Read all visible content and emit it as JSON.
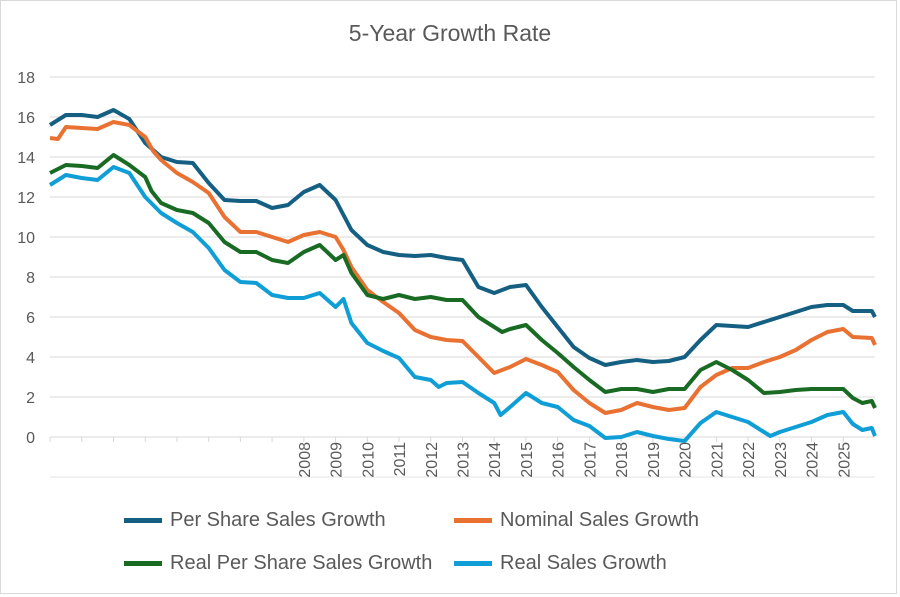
{
  "chart_data": {
    "type": "line",
    "title": "5-Year Growth Rate",
    "xlabel": "",
    "ylabel": "",
    "xlim": [
      2000,
      2026
    ],
    "ylim": [
      0,
      18
    ],
    "y_ticks": [
      0,
      2,
      4,
      6,
      8,
      10,
      12,
      14,
      16,
      18
    ],
    "x_ticks": [
      2000,
      2001,
      2002,
      2003,
      2004,
      2005,
      2006,
      2007,
      2008,
      2009,
      2010,
      2011,
      2012,
      2013,
      2014,
      2015,
      2016,
      2017,
      2018,
      2019,
      2020,
      2021,
      2022,
      2023,
      2024,
      2025
    ],
    "x_tick_labels": [
      "",
      "",
      "",
      "",
      "",
      "",
      "",
      "",
      "2008",
      "2009",
      "2010",
      "2011",
      "2012",
      "2013",
      "2014",
      "2015",
      "2016",
      "2017",
      "2018",
      "2019",
      "2020",
      "2021",
      "2022",
      "2023",
      "2024",
      "2025"
    ],
    "grid": true,
    "legend_position": "bottom",
    "series": [
      {
        "name": "Per Share Sales Growth",
        "color": "#156082",
        "points": [
          [
            2000,
            15.6
          ],
          [
            2000.5,
            16.1
          ],
          [
            2001,
            16.1
          ],
          [
            2001.5,
            16.0
          ],
          [
            2002,
            16.35
          ],
          [
            2002.5,
            15.9
          ],
          [
            2003,
            14.7
          ],
          [
            2003.5,
            14.0
          ],
          [
            2004,
            13.75
          ],
          [
            2004.5,
            13.7
          ],
          [
            2005,
            12.7
          ],
          [
            2005.5,
            11.85
          ],
          [
            2006,
            11.8
          ],
          [
            2006.5,
            11.8
          ],
          [
            2007,
            11.45
          ],
          [
            2007.5,
            11.6
          ],
          [
            2008,
            12.25
          ],
          [
            2008.5,
            12.6
          ],
          [
            2009,
            11.85
          ],
          [
            2009.5,
            10.35
          ],
          [
            2010,
            9.6
          ],
          [
            2010.5,
            9.25
          ],
          [
            2011,
            9.1
          ],
          [
            2011.5,
            9.05
          ],
          [
            2012,
            9.1
          ],
          [
            2012.5,
            8.95
          ],
          [
            2013,
            8.85
          ],
          [
            2013.5,
            7.5
          ],
          [
            2014,
            7.2
          ],
          [
            2014.5,
            7.5
          ],
          [
            2015,
            7.6
          ],
          [
            2015.5,
            6.5
          ],
          [
            2016,
            5.5
          ],
          [
            2016.5,
            4.5
          ],
          [
            2017,
            3.95
          ],
          [
            2017.5,
            3.6
          ],
          [
            2018,
            3.75
          ],
          [
            2018.5,
            3.85
          ],
          [
            2019,
            3.75
          ],
          [
            2019.5,
            3.8
          ],
          [
            2020,
            4.0
          ],
          [
            2020.5,
            4.85
          ],
          [
            2021,
            5.6
          ],
          [
            2021.5,
            5.55
          ],
          [
            2022,
            5.5
          ],
          [
            2022.5,
            5.75
          ],
          [
            2023,
            6.0
          ],
          [
            2023.5,
            6.25
          ],
          [
            2024,
            6.5
          ],
          [
            2024.5,
            6.6
          ],
          [
            2025,
            6.6
          ],
          [
            2025.3,
            6.3
          ],
          [
            2025.9,
            6.3
          ],
          [
            2026,
            6.0
          ]
        ]
      },
      {
        "name": "Nominal Sales Growth",
        "color": "#E97132",
        "points": [
          [
            2000,
            14.95
          ],
          [
            2000.25,
            14.9
          ],
          [
            2000.5,
            15.5
          ],
          [
            2001,
            15.45
          ],
          [
            2001.5,
            15.4
          ],
          [
            2002,
            15.75
          ],
          [
            2002.5,
            15.6
          ],
          [
            2003,
            15.0
          ],
          [
            2003.25,
            14.3
          ],
          [
            2003.5,
            13.85
          ],
          [
            2004,
            13.2
          ],
          [
            2004.5,
            12.75
          ],
          [
            2005,
            12.2
          ],
          [
            2005.5,
            11.0
          ],
          [
            2006,
            10.25
          ],
          [
            2006.5,
            10.25
          ],
          [
            2007,
            10.0
          ],
          [
            2007.5,
            9.75
          ],
          [
            2008,
            10.1
          ],
          [
            2008.5,
            10.25
          ],
          [
            2009,
            10.0
          ],
          [
            2009.25,
            9.35
          ],
          [
            2009.5,
            8.5
          ],
          [
            2010,
            7.35
          ],
          [
            2010.5,
            6.75
          ],
          [
            2011,
            6.2
          ],
          [
            2011.5,
            5.35
          ],
          [
            2012,
            5.0
          ],
          [
            2012.5,
            4.85
          ],
          [
            2013,
            4.8
          ],
          [
            2013.5,
            4.0
          ],
          [
            2014,
            3.2
          ],
          [
            2014.5,
            3.5
          ],
          [
            2015,
            3.9
          ],
          [
            2015.5,
            3.6
          ],
          [
            2016,
            3.25
          ],
          [
            2016.5,
            2.35
          ],
          [
            2017,
            1.7
          ],
          [
            2017.5,
            1.2
          ],
          [
            2018,
            1.35
          ],
          [
            2018.5,
            1.7
          ],
          [
            2019,
            1.5
          ],
          [
            2019.5,
            1.35
          ],
          [
            2020,
            1.45
          ],
          [
            2020.5,
            2.5
          ],
          [
            2021,
            3.1
          ],
          [
            2021.5,
            3.45
          ],
          [
            2022,
            3.45
          ],
          [
            2022.5,
            3.75
          ],
          [
            2023,
            4.0
          ],
          [
            2023.5,
            4.35
          ],
          [
            2024,
            4.85
          ],
          [
            2024.5,
            5.25
          ],
          [
            2025,
            5.4
          ],
          [
            2025.3,
            5.0
          ],
          [
            2025.9,
            4.95
          ],
          [
            2026,
            4.6
          ]
        ]
      },
      {
        "name": "Real Per Share Sales Growth",
        "color": "#196B24",
        "points": [
          [
            2000,
            13.2
          ],
          [
            2000.5,
            13.6
          ],
          [
            2001,
            13.55
          ],
          [
            2001.5,
            13.45
          ],
          [
            2002,
            14.1
          ],
          [
            2002.5,
            13.6
          ],
          [
            2003,
            13.0
          ],
          [
            2003.2,
            12.3
          ],
          [
            2003.5,
            11.7
          ],
          [
            2004,
            11.35
          ],
          [
            2004.5,
            11.2
          ],
          [
            2005,
            10.7
          ],
          [
            2005.5,
            9.75
          ],
          [
            2006,
            9.25
          ],
          [
            2006.5,
            9.25
          ],
          [
            2007,
            8.85
          ],
          [
            2007.5,
            8.7
          ],
          [
            2008,
            9.25
          ],
          [
            2008.5,
            9.6
          ],
          [
            2009,
            8.85
          ],
          [
            2009.25,
            9.1
          ],
          [
            2009.5,
            8.2
          ],
          [
            2010,
            7.1
          ],
          [
            2010.5,
            6.9
          ],
          [
            2011,
            7.1
          ],
          [
            2011.5,
            6.9
          ],
          [
            2012,
            7.0
          ],
          [
            2012.5,
            6.85
          ],
          [
            2013,
            6.85
          ],
          [
            2013.5,
            6.0
          ],
          [
            2014,
            5.5
          ],
          [
            2014.25,
            5.25
          ],
          [
            2014.5,
            5.4
          ],
          [
            2015,
            5.6
          ],
          [
            2015.5,
            4.85
          ],
          [
            2016,
            4.2
          ],
          [
            2016.5,
            3.5
          ],
          [
            2017,
            2.85
          ],
          [
            2017.5,
            2.25
          ],
          [
            2018,
            2.4
          ],
          [
            2018.5,
            2.4
          ],
          [
            2019,
            2.25
          ],
          [
            2019.5,
            2.4
          ],
          [
            2020,
            2.4
          ],
          [
            2020.5,
            3.35
          ],
          [
            2021,
            3.75
          ],
          [
            2021.5,
            3.35
          ],
          [
            2022,
            2.85
          ],
          [
            2022.5,
            2.2
          ],
          [
            2023,
            2.25
          ],
          [
            2023.5,
            2.35
          ],
          [
            2024,
            2.4
          ],
          [
            2024.5,
            2.4
          ],
          [
            2025,
            2.4
          ],
          [
            2025.3,
            1.95
          ],
          [
            2025.6,
            1.7
          ],
          [
            2025.9,
            1.8
          ],
          [
            2026,
            1.45
          ]
        ]
      },
      {
        "name": "Real Sales Growth",
        "color": "#0F9ED5",
        "points": [
          [
            2000,
            12.6
          ],
          [
            2000.5,
            13.1
          ],
          [
            2001,
            12.95
          ],
          [
            2001.5,
            12.85
          ],
          [
            2002,
            13.5
          ],
          [
            2002.5,
            13.2
          ],
          [
            2003,
            12.0
          ],
          [
            2003.5,
            11.2
          ],
          [
            2004,
            10.7
          ],
          [
            2004.5,
            10.25
          ],
          [
            2005,
            9.45
          ],
          [
            2005.5,
            8.35
          ],
          [
            2006,
            7.75
          ],
          [
            2006.5,
            7.7
          ],
          [
            2007,
            7.1
          ],
          [
            2007.5,
            6.95
          ],
          [
            2008,
            6.95
          ],
          [
            2008.5,
            7.2
          ],
          [
            2009,
            6.5
          ],
          [
            2009.25,
            6.9
          ],
          [
            2009.5,
            5.7
          ],
          [
            2010,
            4.7
          ],
          [
            2010.5,
            4.3
          ],
          [
            2011,
            3.95
          ],
          [
            2011.5,
            3.0
          ],
          [
            2012,
            2.85
          ],
          [
            2012.25,
            2.5
          ],
          [
            2012.5,
            2.7
          ],
          [
            2013,
            2.75
          ],
          [
            2013.5,
            2.2
          ],
          [
            2014,
            1.7
          ],
          [
            2014.2,
            1.1
          ],
          [
            2014.5,
            1.5
          ],
          [
            2015,
            2.2
          ],
          [
            2015.5,
            1.7
          ],
          [
            2016,
            1.5
          ],
          [
            2016.5,
            0.85
          ],
          [
            2017,
            0.55
          ],
          [
            2017.5,
            -0.05
          ],
          [
            2018,
            0.0
          ],
          [
            2018.5,
            0.25
          ],
          [
            2019,
            0.05
          ],
          [
            2019.5,
            -0.1
          ],
          [
            2020,
            -0.2
          ],
          [
            2020.5,
            0.7
          ],
          [
            2021,
            1.25
          ],
          [
            2021.5,
            1.0
          ],
          [
            2022,
            0.75
          ],
          [
            2022.5,
            0.25
          ],
          [
            2022.7,
            0.05
          ],
          [
            2023,
            0.25
          ],
          [
            2023.5,
            0.5
          ],
          [
            2024,
            0.75
          ],
          [
            2024.5,
            1.1
          ],
          [
            2025,
            1.25
          ],
          [
            2025.3,
            0.65
          ],
          [
            2025.6,
            0.35
          ],
          [
            2025.9,
            0.45
          ],
          [
            2026,
            0.05
          ]
        ]
      }
    ]
  }
}
